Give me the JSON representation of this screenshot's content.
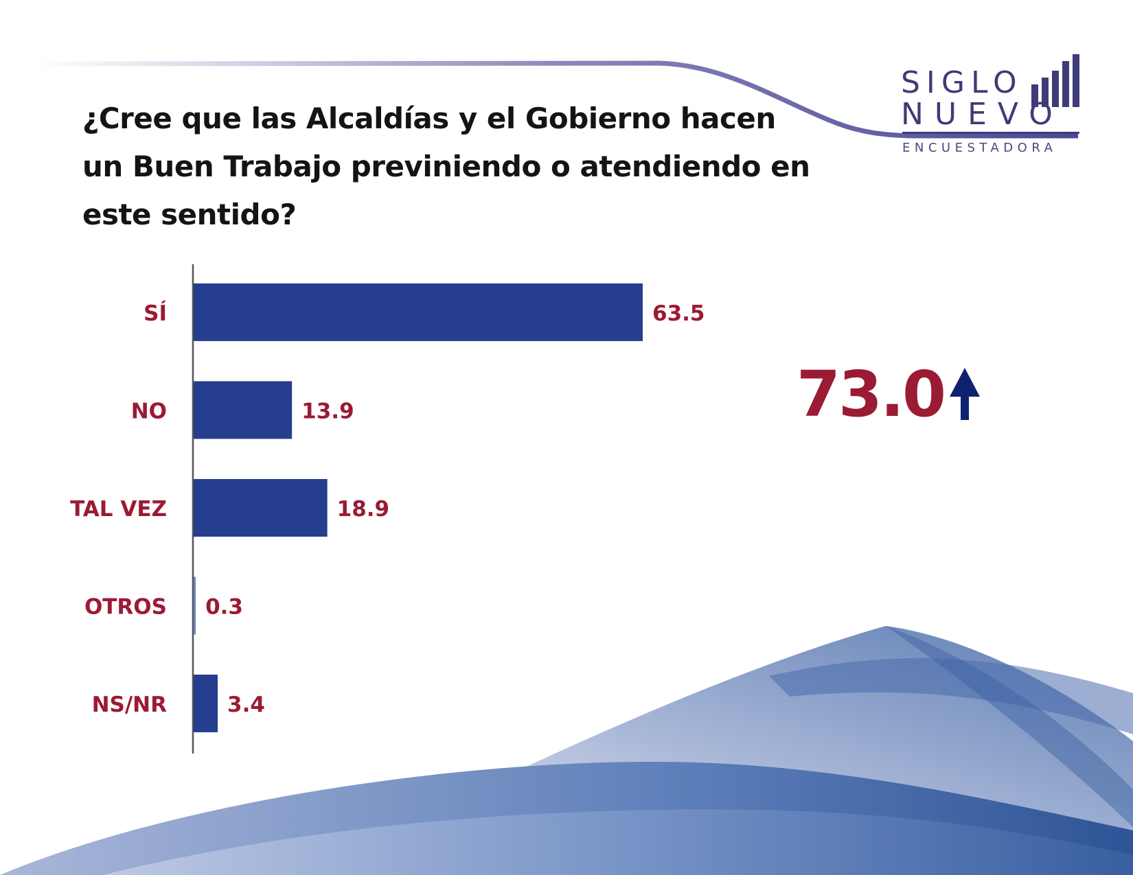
{
  "title": "¿Cree que las Alcaldías y el Gobierno hacen un Buen Trabajo previniendo o atendiendo en este sentido?",
  "logo": {
    "line1": "SIGLO",
    "line2": "NUEVO",
    "line3": "ENCUESTADORA",
    "color": "#3f3b78"
  },
  "highlight": {
    "value": "73.0",
    "arrow_icon": "arrow-up-icon",
    "value_color": "#9b1a34",
    "arrow_color": "#0f2270"
  },
  "chart_data": {
    "type": "bar",
    "orientation": "horizontal",
    "categories": [
      "SÍ",
      "NO",
      "TAL VEZ",
      "OTROS",
      "NS/NR"
    ],
    "values": [
      63.5,
      13.9,
      18.9,
      0.3,
      3.4
    ],
    "data_labels": [
      "63.5",
      "13.9",
      "18.9",
      "0.3",
      "3.4"
    ],
    "xlim": [
      0,
      63.5
    ],
    "grid": false,
    "legend": "none",
    "bar_color": "#263e8e",
    "label_color": "#9b1a34"
  }
}
